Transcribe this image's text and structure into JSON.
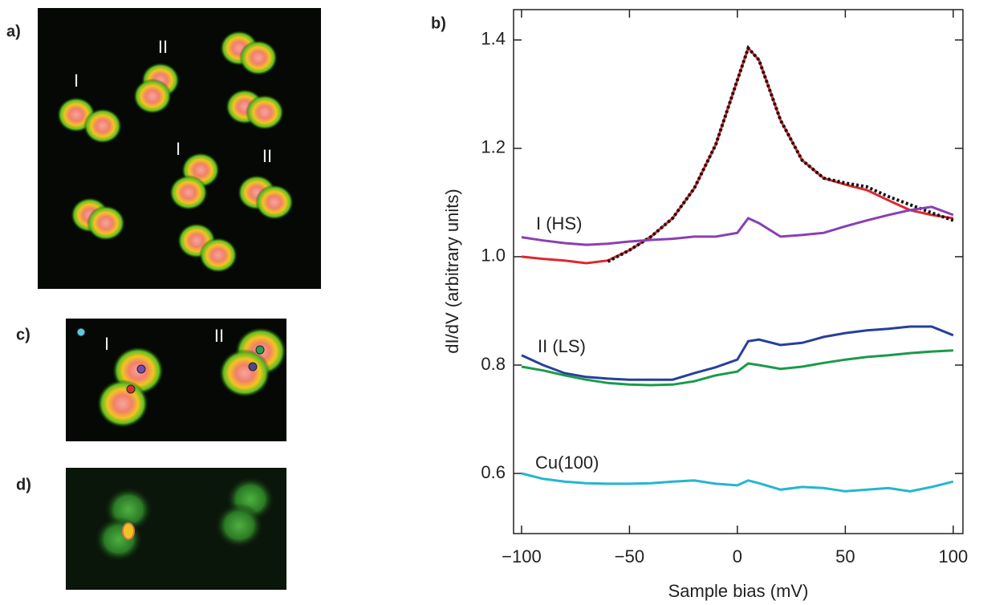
{
  "panels": {
    "a": {
      "label": "a)",
      "markers": [
        "I",
        "II",
        "I",
        "II"
      ]
    },
    "b": {
      "label": "b)"
    },
    "c": {
      "label": "c)",
      "markers": [
        "I",
        "II"
      ]
    },
    "d": {
      "label": "d)"
    }
  },
  "chart_data": {
    "type": "line",
    "x_label": "Sample bias (mV)",
    "y_label": "dI/dV (arbitrary units)",
    "x": [
      -100,
      -90,
      -80,
      -70,
      -60,
      -50,
      -40,
      -30,
      -20,
      -10,
      0,
      5,
      10,
      20,
      30,
      40,
      50,
      60,
      70,
      80,
      90,
      100
    ],
    "series": [
      {
        "color": "#e0262b",
        "values": [
          1.0,
          0.996,
          0.993,
          0.988,
          0.993,
          1.012,
          1.037,
          1.071,
          1.126,
          1.207,
          1.326,
          1.385,
          1.363,
          1.252,
          1.178,
          1.145,
          1.133,
          1.123,
          1.104,
          1.086,
          1.077,
          1.071
        ]
      },
      {
        "color": "#111111",
        "dashed": true,
        "values": [
          null,
          null,
          null,
          null,
          0.991,
          1.012,
          1.037,
          1.071,
          1.126,
          1.207,
          1.326,
          1.385,
          1.363,
          1.252,
          1.178,
          1.145,
          1.136,
          1.129,
          1.111,
          1.096,
          1.081,
          1.067
        ]
      },
      {
        "name": "I (HS)",
        "color": "#8a3fb5",
        "values": [
          1.036,
          1.03,
          1.025,
          1.022,
          1.024,
          1.028,
          1.031,
          1.033,
          1.037,
          1.037,
          1.044,
          1.071,
          1.062,
          1.037,
          1.04,
          1.044,
          1.056,
          1.067,
          1.077,
          1.086,
          1.092,
          1.077
        ]
      },
      {
        "name": "II (LS)",
        "color": "#26409a",
        "values": [
          0.818,
          0.8,
          0.785,
          0.778,
          0.775,
          0.773,
          0.773,
          0.773,
          0.785,
          0.796,
          0.81,
          0.844,
          0.847,
          0.837,
          0.841,
          0.852,
          0.859,
          0.864,
          0.867,
          0.871,
          0.871,
          0.855
        ]
      },
      {
        "color": "#1b9a4a",
        "values": [
          0.797,
          0.79,
          0.781,
          0.773,
          0.767,
          0.764,
          0.763,
          0.764,
          0.77,
          0.781,
          0.788,
          0.803,
          0.8,
          0.793,
          0.797,
          0.804,
          0.81,
          0.815,
          0.818,
          0.822,
          0.825,
          0.827
        ]
      },
      {
        "name": "Cu(100)",
        "color": "#25b5d2",
        "values": [
          0.6,
          0.59,
          0.585,
          0.582,
          0.581,
          0.581,
          0.582,
          0.585,
          0.587,
          0.581,
          0.578,
          0.587,
          0.582,
          0.57,
          0.575,
          0.573,
          0.567,
          0.57,
          0.573,
          0.567,
          0.575,
          0.585
        ]
      }
    ],
    "xlim": [
      -103.7,
      104.5
    ],
    "ylim": [
      0.489,
      1.456
    ],
    "xticks": [
      {
        "value": -100,
        "label": "−100"
      },
      {
        "value": -50,
        "label": "−50"
      },
      0,
      50,
      100
    ],
    "yticks": [
      0.6,
      0.8,
      {
        "value": 1,
        "label": "1.0"
      },
      1.2,
      1.4
    ]
  }
}
